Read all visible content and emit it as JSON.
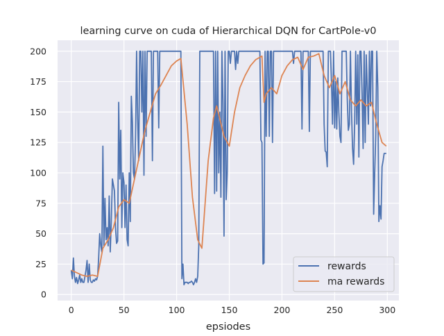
{
  "chart_data": {
    "type": "line",
    "title": "learning curve on cuda of Hierarchical DQN for CartPole-v0",
    "xlabel": "epsiodes",
    "ylabel": "",
    "xlim": [
      -13,
      311
    ],
    "ylim": [
      -5,
      209
    ],
    "xticks": [
      0,
      50,
      100,
      150,
      200,
      250,
      300
    ],
    "yticks": [
      0,
      25,
      50,
      75,
      100,
      125,
      150,
      175,
      200
    ],
    "grid": true,
    "background": "#eaeaf2",
    "legend": {
      "placement": "bottom-right",
      "entries": [
        "rewards",
        "ma rewards"
      ]
    },
    "series": [
      {
        "name": "rewards",
        "color": "#4c72b0",
        "values": [
          20,
          13,
          30,
          15,
          10,
          14,
          9,
          12,
          16,
          10,
          13,
          10,
          10,
          15,
          20,
          28,
          10,
          25,
          12,
          10,
          10,
          12,
          11,
          13,
          12,
          15,
          30,
          50,
          40,
          35,
          122,
          40,
          79,
          45,
          55,
          40,
          81,
          35,
          60,
          95,
          90,
          85,
          55,
          42,
          44,
          158,
          95,
          135,
          55,
          100,
          92,
          55,
          90,
          45,
          40,
          100,
          60,
          163,
          142,
          100,
          95,
          130,
          200,
          145,
          110,
          200,
          200,
          150,
          200,
          98,
          200,
          130,
          200,
          200,
          200,
          200,
          200,
          110,
          200,
          200,
          200,
          200,
          200,
          137,
          200,
          200,
          200,
          200,
          200,
          200,
          200,
          200,
          200,
          200,
          200,
          200,
          200,
          200,
          200,
          200,
          200,
          200,
          200,
          200,
          200,
          13,
          25,
          8,
          10,
          10,
          10,
          9,
          10,
          10,
          11,
          10,
          8,
          10,
          13,
          10,
          15,
          40,
          200,
          200,
          200,
          200,
          200,
          200,
          200,
          200,
          200,
          200,
          200,
          200,
          200,
          200,
          83,
          200,
          85,
          200,
          100,
          150,
          80,
          200,
          158,
          48,
          200,
          78,
          100,
          200,
          200,
          190,
          200,
          200,
          200,
          200,
          185,
          200,
          190,
          200,
          200,
          200,
          200,
          200,
          200,
          200,
          200,
          200,
          200,
          200,
          200,
          200,
          200,
          200,
          200,
          200,
          200,
          200,
          200,
          200,
          127,
          125,
          25,
          26,
          200,
          130,
          200,
          200,
          130,
          200,
          200,
          125,
          200,
          200,
          200,
          200,
          200,
          200,
          200,
          200,
          200,
          200,
          200,
          200,
          200,
          200,
          200,
          200,
          200,
          200,
          200,
          190,
          200,
          200,
          200,
          200,
          200,
          200,
          200,
          136,
          200,
          200,
          200,
          200,
          200,
          200,
          134,
          200,
          200,
          200,
          200,
          200,
          200,
          200,
          200,
          200,
          200,
          200,
          200,
          200,
          140,
          118,
          117,
          105,
          200,
          200,
          200,
          175,
          140,
          200,
          137,
          175,
          136,
          178,
          150,
          130,
          125,
          200,
          200,
          200,
          200,
          200,
          160,
          135,
          140,
          200,
          150,
          120,
          107,
          140,
          200,
          140,
          197,
          113,
          200,
          200,
          165,
          120,
          200,
          125,
          197,
          170,
          140,
          200,
          155,
          200,
          200,
          66,
          100,
          130,
          200,
          170,
          60,
          73,
          62,
          105,
          110,
          116,
          116,
          116
        ]
      },
      {
        "name": "ma rewards",
        "color": "#dd8452",
        "x": [
          0,
          5,
          10,
          15,
          20,
          25,
          30,
          35,
          40,
          45,
          50,
          55,
          60,
          65,
          70,
          75,
          80,
          85,
          90,
          95,
          100,
          104,
          110,
          115,
          120,
          124,
          130,
          135,
          138,
          145,
          150,
          155,
          160,
          165,
          170,
          175,
          181,
          183,
          185,
          190,
          195,
          200,
          205,
          210,
          215,
          220,
          225,
          230,
          235,
          240,
          245,
          250,
          255,
          260,
          265,
          270,
          275,
          280,
          285,
          290,
          295,
          299
        ],
        "values": [
          20,
          18,
          16,
          15,
          16,
          15,
          38,
          45,
          55,
          72,
          78,
          75,
          95,
          115,
          135,
          150,
          165,
          172,
          180,
          188,
          192,
          194,
          140,
          80,
          45,
          38,
          110,
          145,
          155,
          130,
          122,
          150,
          170,
          180,
          188,
          193,
          196,
          158,
          165,
          170,
          165,
          180,
          188,
          193,
          195,
          185,
          195,
          196,
          198,
          180,
          170,
          180,
          165,
          175,
          160,
          155,
          160,
          155,
          158,
          140,
          125,
          122
        ]
      }
    ]
  }
}
